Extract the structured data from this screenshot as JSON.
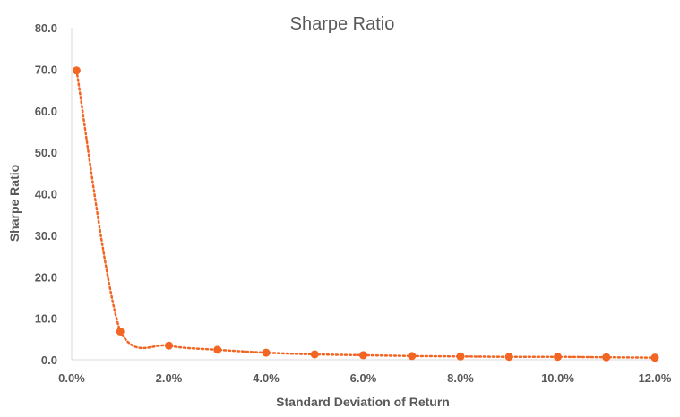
{
  "colors": {
    "series": "#f26522",
    "text": "#595959",
    "axis": "#d9d9d9"
  },
  "chart_data": {
    "type": "scatter",
    "title": "Sharpe Ratio",
    "xlabel": "Standard Deviation of Return",
    "ylabel": "Sharpe Ratio",
    "xlim": [
      0,
      0.12
    ],
    "ylim": [
      0,
      80
    ],
    "x_ticks": [
      "0.0%",
      "2.0%",
      "4.0%",
      "6.0%",
      "8.0%",
      "10.0%",
      "12.0%"
    ],
    "x_tick_values": [
      0,
      0.02,
      0.04,
      0.06,
      0.08,
      0.1,
      0.12
    ],
    "y_ticks": [
      "0.0",
      "10.0",
      "20.0",
      "30.0",
      "40.0",
      "50.0",
      "60.0",
      "70.0",
      "80.0"
    ],
    "y_tick_values": [
      0,
      10,
      20,
      30,
      40,
      50,
      60,
      70,
      80
    ],
    "grid": false,
    "legend": "none",
    "series": [
      {
        "line_style": "dotted smoothed",
        "x": [
          0.001,
          0.01,
          0.02,
          0.03,
          0.04,
          0.05,
          0.06,
          0.07,
          0.08,
          0.09,
          0.1,
          0.11,
          0.12
        ],
        "y": [
          69.7,
          6.8,
          3.4,
          2.4,
          1.7,
          1.3,
          1.1,
          0.9,
          0.8,
          0.7,
          0.7,
          0.6,
          0.5
        ]
      }
    ]
  }
}
